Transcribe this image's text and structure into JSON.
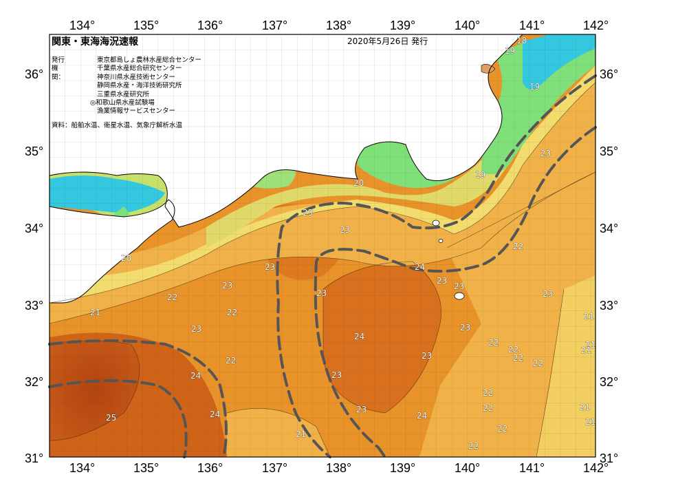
{
  "header": {
    "title": "関東・東海海況速報",
    "date": "2020年5月26日 発行"
  },
  "issuers": {
    "label": "発行機関：",
    "items": [
      "東京都島しょ農林水産総合センター",
      "千葉県水産総合研究センター",
      "神奈川県水産技術センター",
      "静岡県水産・海洋技術研究所",
      "三重県水産研究所",
      "◎和歌山県水産試験場",
      "漁業情報サービスセンター"
    ]
  },
  "source": "資料：船舶水温、衛星水温、気象庁解析水温",
  "axes": {
    "longitude_ticks": [
      "134°",
      "135°",
      "136°",
      "137°",
      "138°",
      "139°",
      "140°",
      "141°",
      "142°"
    ],
    "latitude_ticks": [
      "36°",
      "35°",
      "34°",
      "33°",
      "32°",
      "31°"
    ]
  },
  "isotherm_labels": [
    "18",
    "19",
    "19",
    "19",
    "20",
    "20",
    "21",
    "21",
    "21",
    "21",
    "21",
    "21",
    "21",
    "22",
    "22",
    "22",
    "22",
    "22",
    "22",
    "22",
    "22",
    "22",
    "22",
    "22",
    "22",
    "23",
    "23",
    "23",
    "23",
    "23",
    "23",
    "23",
    "23",
    "23",
    "23",
    "23",
    "23",
    "23",
    "23",
    "24",
    "24",
    "24",
    "24",
    "24",
    "25"
  ],
  "colors": {
    "water_cold": "#33c8e0",
    "water_19": "#7fe07a",
    "water_20": "#c7e06a",
    "water_21": "#f2dc6e",
    "water_22": "#f0b248",
    "water_23": "#e8922a",
    "water_24": "#d8701e",
    "water_25": "#b84a12",
    "land": "#ffffff",
    "kuroshio_axis": "#555555"
  },
  "legend_symbols": {
    "kuroshio_line": "dashed gray thick line"
  }
}
